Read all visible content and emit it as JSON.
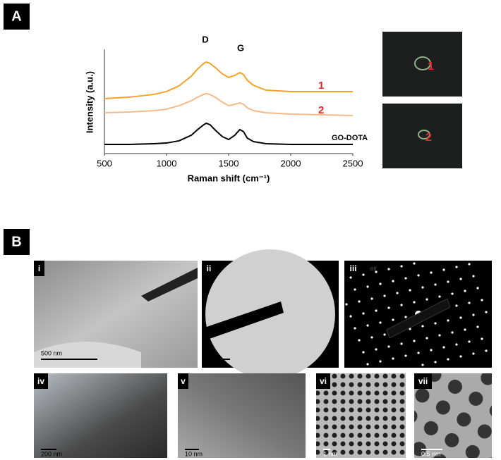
{
  "chart_data": {
    "type": "line",
    "xlabel": "Raman shift (cm⁻¹)",
    "ylabel": "Intensity (a.u.)",
    "annotations": [
      "D",
      "G"
    ],
    "x": [
      500,
      700,
      900,
      1000,
      1100,
      1200,
      1250,
      1300,
      1320,
      1350,
      1400,
      1450,
      1500,
      1550,
      1590,
      1620,
      1650,
      1700,
      1800,
      2000,
      2250,
      2500
    ],
    "series": [
      {
        "name": "1",
        "color": "#f2a42a",
        "values": [
          5.27,
          5.41,
          5.68,
          5.95,
          6.49,
          7.43,
          8.11,
          8.65,
          8.78,
          8.65,
          8.18,
          7.64,
          7.3,
          7.5,
          7.77,
          7.57,
          7.03,
          6.55,
          6.08,
          5.95,
          5.95,
          5.95
        ]
      },
      {
        "name": "2",
        "color": "#f5b98a",
        "values": [
          3.92,
          3.99,
          4.12,
          4.26,
          4.59,
          5.07,
          5.41,
          5.68,
          5.74,
          5.68,
          5.34,
          4.93,
          4.59,
          4.73,
          4.86,
          4.73,
          4.39,
          4.12,
          3.92,
          3.78,
          3.72,
          3.65
        ]
      },
      {
        "name": "GO-DOTA",
        "color": "#000000",
        "values": [
          0.88,
          0.88,
          0.95,
          1.01,
          1.22,
          1.76,
          2.3,
          2.77,
          2.91,
          2.77,
          2.16,
          1.62,
          1.35,
          1.76,
          2.3,
          2.1,
          1.49,
          1.15,
          0.95,
          0.88,
          0.88,
          0.88
        ]
      }
    ],
    "xlim": [
      500,
      2500
    ],
    "xticks": [
      500,
      1000,
      1500,
      2000,
      2500
    ],
    "ylim": [
      0,
      10
    ]
  },
  "figure": {
    "panel_labels": [
      "A",
      "B"
    ],
    "insets": [
      "1",
      "2"
    ],
    "images": [
      {
        "label": "i",
        "scale_bar": "500 nm"
      },
      {
        "label": "ii"
      },
      {
        "label": "iii",
        "note": "diff"
      },
      {
        "label": "iv",
        "scale_bar": "200 nm"
      },
      {
        "label": "v",
        "scale_bar": "10 nm"
      },
      {
        "label": "vi",
        "scale_bar": "1 nm"
      },
      {
        "label": "vii",
        "scale_bar": "0.5 nm"
      }
    ]
  }
}
